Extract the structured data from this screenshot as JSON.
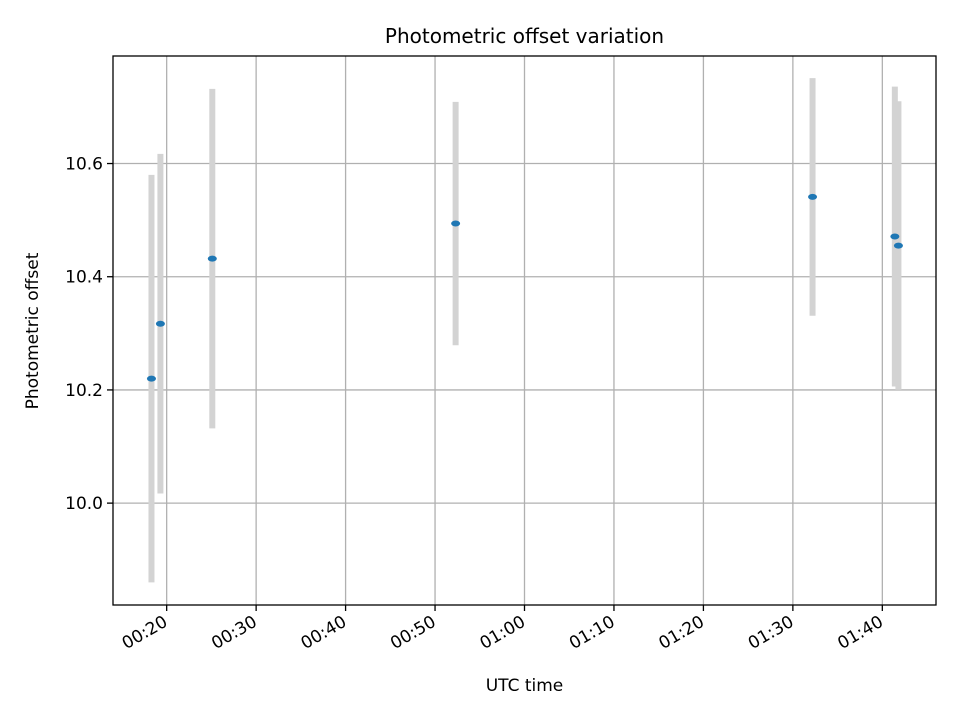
{
  "chart_data": {
    "type": "scatter",
    "title": "Photometric offset variation",
    "xlabel": "UTC time",
    "ylabel": "Photometric offset",
    "x_ticks": [
      "00:20",
      "00:30",
      "00:40",
      "00:50",
      "01:00",
      "01:10",
      "01:20",
      "01:30",
      "01:40"
    ],
    "x_tick_minutes": [
      20,
      30,
      40,
      50,
      60,
      70,
      80,
      90,
      100
    ],
    "xlim_minutes": [
      14,
      106
    ],
    "y_ticks": [
      10.0,
      10.2,
      10.4,
      10.6
    ],
    "ylim": [
      9.82,
      10.79
    ],
    "grid": true,
    "marker_color": "#1f77b4",
    "errorbar_color": "#d3d3d3",
    "points": [
      {
        "time": "00:18:18",
        "y": 10.22,
        "yerr": 0.36
      },
      {
        "time": "00:19:18",
        "y": 10.317,
        "yerr": 0.3
      },
      {
        "time": "00:25:06",
        "y": 10.432,
        "yerr": 0.3
      },
      {
        "time": "00:52:18",
        "y": 10.494,
        "yerr": 0.215
      },
      {
        "time": "01:32:12",
        "y": 10.541,
        "yerr": 0.21
      },
      {
        "time": "01:41:24",
        "y": 10.471,
        "yerr": 0.265
      },
      {
        "time": "01:41:48",
        "y": 10.455,
        "yerr": 0.255
      }
    ]
  }
}
